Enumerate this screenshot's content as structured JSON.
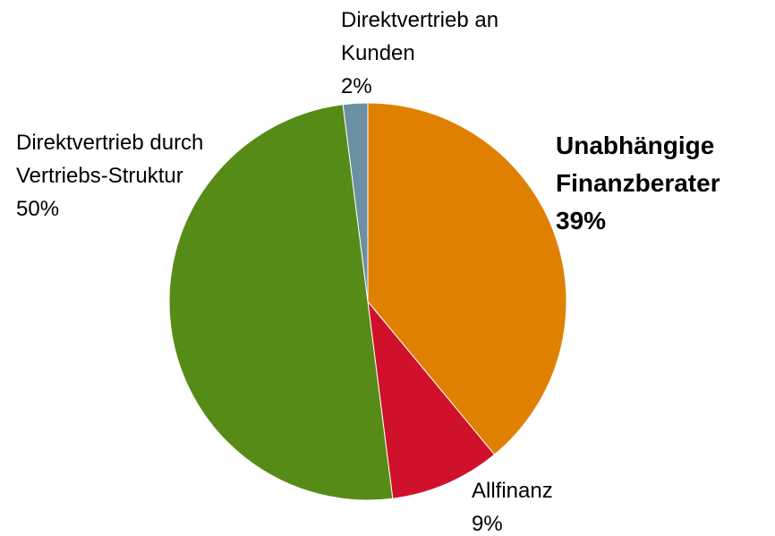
{
  "chart_data": {
    "type": "pie",
    "categories": [
      "Unabhängige Finanzberater",
      "Allfinanz",
      "Direktvertrieb durch Vertriebs-Struktur",
      "Direktvertrieb an Kunden"
    ],
    "values": [
      39,
      9,
      50,
      2
    ],
    "value_labels": [
      "39%",
      "9%",
      "50%",
      "2%"
    ],
    "colors": [
      "#e08000",
      "#d0112b",
      "#578b17",
      "#6b8fa3"
    ]
  }
}
